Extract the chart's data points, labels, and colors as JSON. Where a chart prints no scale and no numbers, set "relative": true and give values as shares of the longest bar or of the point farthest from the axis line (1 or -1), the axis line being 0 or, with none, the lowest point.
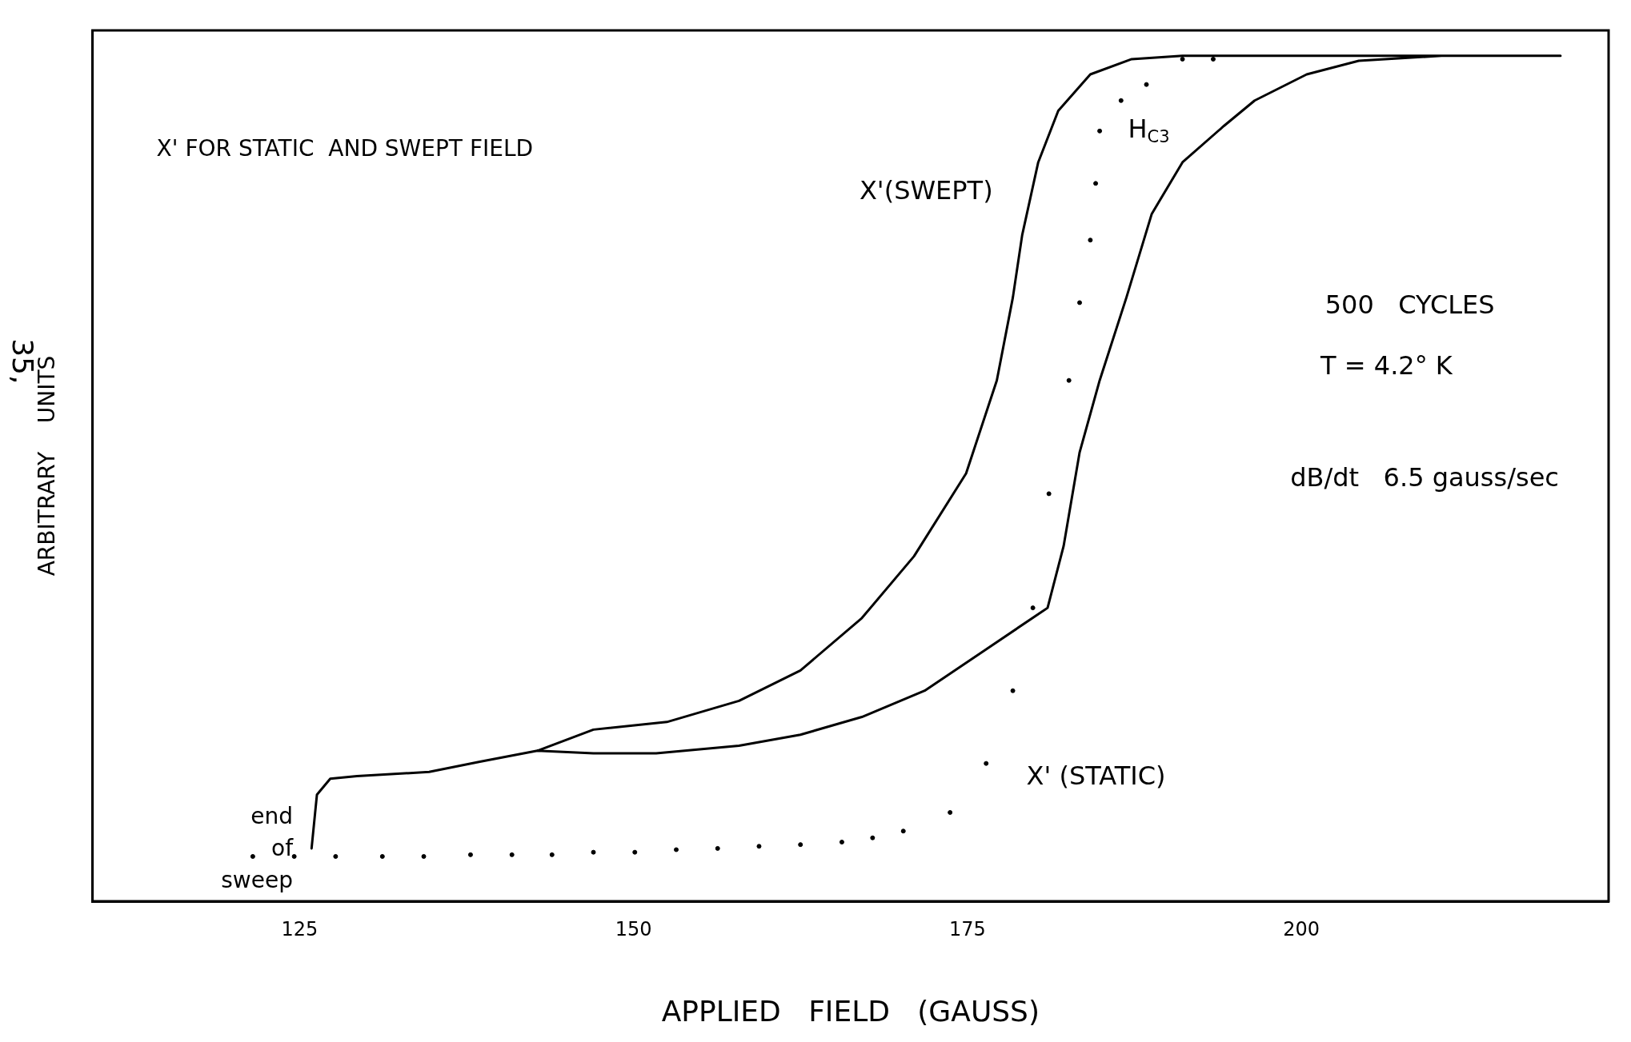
{
  "chart_data": {
    "type": "line",
    "title": "X' FOR STATIC  AND SWEPT FIELD",
    "xlabel": "APPLIED   FIELD   (GAUSS)",
    "ylabel": "ARBITRARY    UNITS",
    "relative": true,
    "xlim": [
      109.5,
      223
    ],
    "xticks": [
      125,
      150,
      175,
      200
    ],
    "grid": false,
    "legend": false,
    "series": [
      {
        "color": "#000000",
        "line_style": "solid",
        "marker": "none",
        "x": [
          125.9,
          126.3,
          127.3,
          129.3,
          134.7,
          138.5,
          142.8,
          147.0,
          151.7,
          157.9,
          162.5,
          167.1,
          171.8,
          176.4,
          181.0,
          182.2,
          183.4,
          184.9,
          186.9,
          188.8,
          191.1,
          194.2,
          196.5,
          200.4,
          204.3,
          210.5,
          219.4,
          200.4,
          191.1,
          187.3,
          184.2,
          181.8,
          180.3,
          179.1,
          178.4,
          177.2,
          174.9,
          171.0,
          167.1,
          162.5,
          157.9,
          152.5,
          147.0,
          142.8
        ],
        "values": [
          0.0625,
          0.126,
          0.145,
          0.148,
          0.153,
          0.165,
          0.178,
          0.175,
          0.175,
          0.184,
          0.197,
          0.218,
          0.249,
          0.298,
          0.347,
          0.42,
          0.531,
          0.616,
          0.714,
          0.813,
          0.874,
          0.917,
          0.947,
          0.978,
          0.994,
          1,
          1,
          1,
          1,
          0.996,
          0.978,
          0.935,
          0.874,
          0.788,
          0.714,
          0.616,
          0.506,
          0.408,
          0.335,
          0.273,
          0.237,
          0.212,
          0.203,
          0.178
        ]
      },
      {
        "type": "scatter",
        "color": "#000000",
        "marker": "circle",
        "x": [
          121.5,
          124.6,
          127.7,
          131.2,
          134.3,
          137.8,
          140.9,
          143.9,
          147.0,
          150.1,
          153.2,
          156.3,
          159.4,
          162.5,
          165.6,
          167.9,
          170.2,
          173.7,
          176.4,
          178.4,
          179.9,
          181.1,
          182.6,
          183.4,
          184.2,
          184.6,
          184.9,
          186.5,
          188.4,
          191.1,
          193.4
        ],
        "values": [
          0.053,
          0.053,
          0.053,
          0.053,
          0.053,
          0.055,
          0.055,
          0.055,
          0.058,
          0.058,
          0.061,
          0.0625,
          0.065,
          0.067,
          0.07,
          0.075,
          0.083,
          0.105,
          0.163,
          0.249,
          0.347,
          0.482,
          0.616,
          0.708,
          0.782,
          0.849,
          0.911,
          0.947,
          0.966,
          0.996,
          0.996
        ]
      }
    ],
    "annotations": [
      {
        "text": "X'(SWEPT)",
        "x": 179.5,
        "y": 0.8
      },
      {
        "text": "end of sweep",
        "x": 126,
        "y": 0.07
      },
      "X' (STATIC)",
      "H$_{C3}$",
      "500   CYCLES",
      "T = 4.2° K",
      "dB/dt   6.5 gauss/sec",
      "35,"
    ]
  }
}
